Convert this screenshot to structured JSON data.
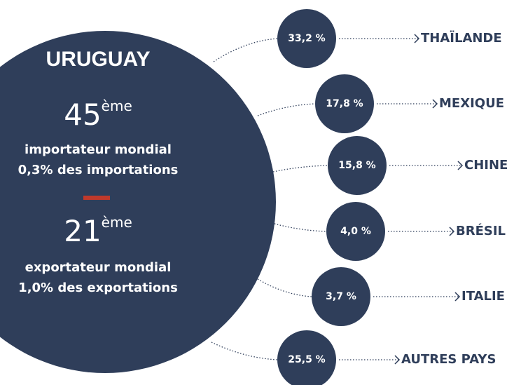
{
  "title": "URUGUAY",
  "import": {
    "rank": "45",
    "suffix": "ème",
    "line1": "importateur mondial",
    "line2": "0,3% des importations"
  },
  "export": {
    "rank": "21",
    "suffix": "ème",
    "line1": "exportateur mondial",
    "line2": "1,0% des exportations"
  },
  "partners": [
    {
      "share": "33,2 %",
      "country": "THAÏLANDE"
    },
    {
      "share": "17,8 %",
      "country": "MEXIQUE"
    },
    {
      "share": "15,8 %",
      "country": "CHINE"
    },
    {
      "share": "4,0 %",
      "country": "BRÉSIL"
    },
    {
      "share": "3,7 %",
      "country": "ITALIE"
    },
    {
      "share": "25,5 %",
      "country": "AUTRES PAYS"
    }
  ]
}
